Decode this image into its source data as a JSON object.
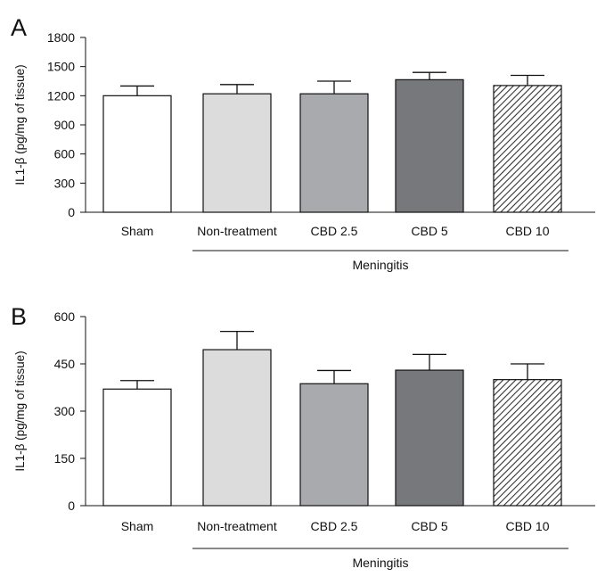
{
  "chart_data": [
    {
      "panel": "A",
      "type": "bar",
      "categories": [
        "Sham",
        "Non-treatment",
        "CBD 2.5",
        "CBD 5",
        "CBD 10"
      ],
      "values": [
        1200,
        1220,
        1220,
        1365,
        1305
      ],
      "errors": [
        100,
        95,
        130,
        75,
        105
      ],
      "bar_fills": [
        "#ffffff",
        "#dcdcdc",
        "#a9aaad",
        "#77787c",
        "hatch"
      ],
      "title": "",
      "xlabel": "",
      "ylabel": "IL1-β (pg/mg of tissue)",
      "ylim": [
        0,
        1800
      ],
      "yticks": [
        "0",
        "300",
        "600",
        "900",
        "1200",
        "1500",
        "1800"
      ],
      "group_label": "Meningitis",
      "group_covers": [
        "Non-treatment",
        "CBD 2.5",
        "CBD 5",
        "CBD 10"
      ],
      "grid": false,
      "legend": "none"
    },
    {
      "panel": "B",
      "type": "bar",
      "categories": [
        "Sham",
        "Non-treatment",
        "CBD 2.5",
        "CBD 5",
        "CBD 10"
      ],
      "values": [
        370,
        495,
        387,
        430,
        400
      ],
      "errors": [
        27,
        58,
        42,
        50,
        50
      ],
      "bar_fills": [
        "#ffffff",
        "#dcdcdc",
        "#a9aaad",
        "#77787c",
        "hatch"
      ],
      "title": "",
      "xlabel": "",
      "ylabel": "IL1-β (pg/mg of tissue)",
      "ylim": [
        0,
        600
      ],
      "yticks": [
        "0",
        "150",
        "300",
        "450",
        "600"
      ],
      "group_label": "Meningitis",
      "group_covers": [
        "Non-treatment",
        "CBD 2.5",
        "CBD 5",
        "CBD 10"
      ],
      "grid": false,
      "legend": "none"
    }
  ]
}
